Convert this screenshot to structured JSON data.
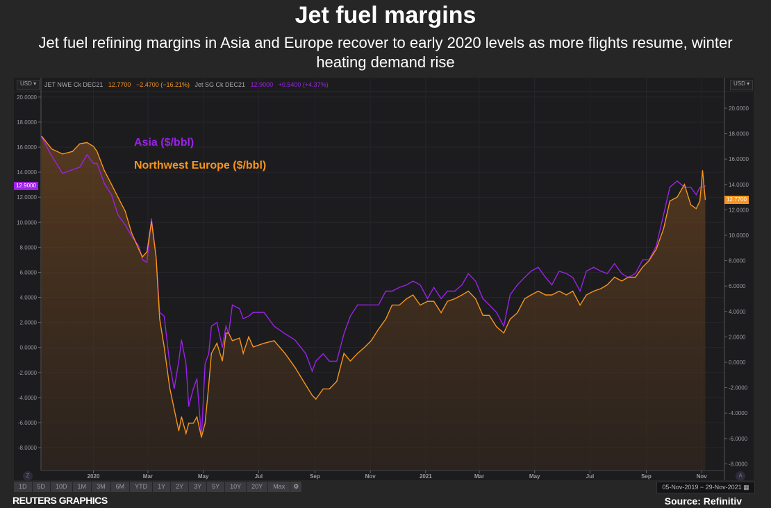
{
  "title": "Jet fuel margins",
  "subtitle": "Jet fuel refining margins in Asia and Europe recover to early 2020 levels as more flights resume, winter heating demand rise",
  "header": {
    "currency": "USD",
    "nwe_name": "JET NWE Ck DEC21",
    "nwe_last": "12.7700",
    "nwe_change": "−2.4700 (−16.21%)",
    "sg_name": "Jet SG Ck DEC21",
    "sg_last": "12.9000",
    "sg_change": "+0.5400 (+4.37%)"
  },
  "markers": {
    "left": "12.9000",
    "right": "12.7700"
  },
  "range_buttons": [
    "1D",
    "5D",
    "10D",
    "1M",
    "3M",
    "6M",
    "YTD",
    "1Y",
    "2Y",
    "3Y",
    "5Y",
    "10Y",
    "20Y",
    "Max"
  ],
  "settings_icon": "gear-icon",
  "date_range": "05-Nov-2019  −  29-Nov-2021",
  "calendar_icon": "calendar-icon",
  "zoom_labels": {
    "left": "Z",
    "right": "A"
  },
  "footer": {
    "left": "REUTERS GRAPHICS",
    "right": "Source: Refinitiv"
  },
  "colors": {
    "asia": "#9b22e6",
    "nwe": "#f7941d",
    "background": "#262626",
    "plot": "#1c1c1f"
  },
  "chart_data": {
    "type": "line",
    "x_ticks": [
      {
        "date": "2020-01-01",
        "label": "2020"
      },
      {
        "date": "2020-03-01",
        "label": "Mar"
      },
      {
        "date": "2020-05-01",
        "label": "May"
      },
      {
        "date": "2020-07-01",
        "label": "Jul"
      },
      {
        "date": "2020-09-01",
        "label": "Sep"
      },
      {
        "date": "2020-11-01",
        "label": "Nov"
      },
      {
        "date": "2021-01-01",
        "label": "2021"
      },
      {
        "date": "2021-03-01",
        "label": "Mar"
      },
      {
        "date": "2021-05-01",
        "label": "May"
      },
      {
        "date": "2021-07-01",
        "label": "Jul"
      },
      {
        "date": "2021-09-01",
        "label": "Sep"
      },
      {
        "date": "2021-11-01",
        "label": "Nov"
      }
    ],
    "left_axis": {
      "ylim": [
        -8,
        20
      ],
      "ticks": [
        -8,
        -6,
        -4,
        -2,
        0,
        2,
        4,
        6,
        8,
        10,
        12,
        14,
        16,
        18,
        20
      ],
      "series": "Asia ($/bbl)"
    },
    "right_axis": {
      "ylim": [
        -8,
        20
      ],
      "ticks": [
        -8,
        -6,
        -4,
        -2,
        0,
        2,
        4,
        6,
        8,
        10,
        12,
        14,
        16,
        18,
        20
      ],
      "series": "Northwest Europe ($/bbl)"
    },
    "grid": true,
    "legend": "top-left",
    "x": [
      "2019-11-05",
      "2019-11-16",
      "2019-11-28",
      "2019-12-09",
      "2019-12-17",
      "2019-12-25",
      "2020-01-01",
      "2020-01-05",
      "2020-01-13",
      "2020-01-21",
      "2020-01-28",
      "2020-02-05",
      "2020-02-12",
      "2020-02-20",
      "2020-02-24",
      "2020-02-29",
      "2020-03-05",
      "2020-03-10",
      "2020-03-14",
      "2020-03-19",
      "2020-03-25",
      "2020-03-30",
      "2020-04-04",
      "2020-04-07",
      "2020-04-12",
      "2020-04-15",
      "2020-04-20",
      "2020-04-24",
      "2020-04-29",
      "2020-05-03",
      "2020-05-07",
      "2020-05-10",
      "2020-05-16",
      "2020-05-22",
      "2020-05-26",
      "2020-05-29",
      "2020-06-02",
      "2020-06-10",
      "2020-06-14",
      "2020-06-20",
      "2020-06-25",
      "2020-07-07",
      "2020-07-18",
      "2020-07-30",
      "2020-08-10",
      "2020-08-22",
      "2020-08-29",
      "2020-09-02",
      "2020-09-10",
      "2020-09-17",
      "2020-09-25",
      "2020-10-03",
      "2020-10-10",
      "2020-10-18",
      "2020-10-26",
      "2020-11-02",
      "2020-11-10",
      "2020-11-18",
      "2020-11-25",
      "2020-12-03",
      "2020-12-11",
      "2020-12-18",
      "2020-12-26",
      "2021-01-03",
      "2021-01-10",
      "2021-01-18",
      "2021-01-25",
      "2021-02-02",
      "2021-02-10",
      "2021-02-17",
      "2021-02-25",
      "2021-03-05",
      "2021-03-12",
      "2021-03-20",
      "2021-03-28",
      "2021-04-04",
      "2021-04-12",
      "2021-04-20",
      "2021-04-27",
      "2021-05-05",
      "2021-05-13",
      "2021-05-20",
      "2021-05-28",
      "2021-06-05",
      "2021-06-12",
      "2021-06-20",
      "2021-06-27",
      "2021-07-05",
      "2021-07-13",
      "2021-07-20",
      "2021-07-28",
      "2021-08-05",
      "2021-08-12",
      "2021-08-20",
      "2021-08-28",
      "2021-09-04",
      "2021-09-12",
      "2021-09-20",
      "2021-09-27",
      "2021-10-05",
      "2021-10-13",
      "2021-10-20",
      "2021-10-26",
      "2021-10-30",
      "2021-11-02",
      "2021-11-05"
    ],
    "series": [
      {
        "name": "Asia ($/bbl)",
        "axis": "left",
        "values": [
          16.8,
          15.3,
          13.9,
          14.2,
          14.4,
          15.4,
          14.7,
          14.7,
          13.1,
          12.2,
          10.6,
          9.8,
          8.9,
          8.1,
          7.0,
          6.8,
          10.3,
          7.2,
          2.8,
          2.5,
          -1.3,
          -3.3,
          -1.1,
          0.6,
          -1.3,
          -4.7,
          -3.3,
          -2.5,
          -7.2,
          -1.3,
          -0.5,
          1.7,
          2.0,
          0.0,
          1.7,
          1.1,
          3.4,
          3.1,
          2.3,
          2.5,
          2.8,
          2.8,
          1.7,
          1.1,
          0.6,
          -0.5,
          -1.9,
          -1.1,
          -0.5,
          -1.1,
          -1.1,
          1.1,
          2.5,
          3.4,
          3.4,
          3.4,
          3.4,
          4.5,
          4.5,
          4.8,
          5.0,
          5.3,
          5.0,
          3.9,
          4.8,
          3.9,
          4.5,
          4.5,
          5.0,
          5.9,
          5.3,
          3.9,
          3.4,
          2.8,
          1.7,
          4.2,
          5.0,
          5.6,
          6.1,
          6.4,
          5.6,
          5.0,
          6.1,
          5.9,
          5.6,
          4.5,
          6.1,
          6.4,
          6.1,
          5.9,
          6.7,
          5.9,
          5.6,
          5.9,
          7.0,
          7.0,
          8.1,
          10.6,
          12.8,
          13.3,
          12.8,
          12.8,
          12.2,
          12.8,
          12.8,
          12.9
        ]
      },
      {
        "name": "Northwest Europe ($/bbl)",
        "axis": "right",
        "values": [
          17.8,
          16.8,
          16.4,
          16.6,
          17.2,
          17.3,
          17.0,
          16.6,
          15.1,
          14.0,
          13.0,
          11.9,
          10.2,
          8.9,
          8.3,
          8.7,
          11.1,
          8.3,
          3.4,
          1.2,
          -2.0,
          -3.7,
          -5.4,
          -4.3,
          -5.6,
          -4.8,
          -4.8,
          -4.3,
          -5.9,
          -4.8,
          -1.8,
          0.7,
          1.5,
          0.1,
          2.3,
          2.3,
          1.7,
          1.9,
          0.7,
          2.0,
          1.2,
          1.5,
          1.7,
          0.7,
          -0.4,
          -1.8,
          -2.6,
          -2.9,
          -2.1,
          -2.1,
          -1.5,
          0.7,
          0.1,
          0.7,
          1.2,
          1.7,
          2.6,
          3.4,
          4.5,
          4.5,
          5.0,
          5.3,
          4.5,
          4.8,
          4.8,
          3.9,
          4.8,
          5.0,
          5.3,
          5.6,
          5.0,
          3.7,
          3.7,
          2.8,
          2.3,
          3.4,
          3.9,
          5.0,
          5.3,
          5.6,
          5.3,
          5.3,
          5.6,
          5.3,
          5.6,
          4.5,
          5.3,
          5.6,
          5.8,
          6.1,
          6.7,
          6.4,
          6.7,
          6.7,
          7.5,
          8.0,
          8.9,
          10.5,
          12.7,
          13.0,
          14.0,
          12.4,
          12.1,
          12.7,
          15.1,
          12.8
        ]
      }
    ]
  }
}
